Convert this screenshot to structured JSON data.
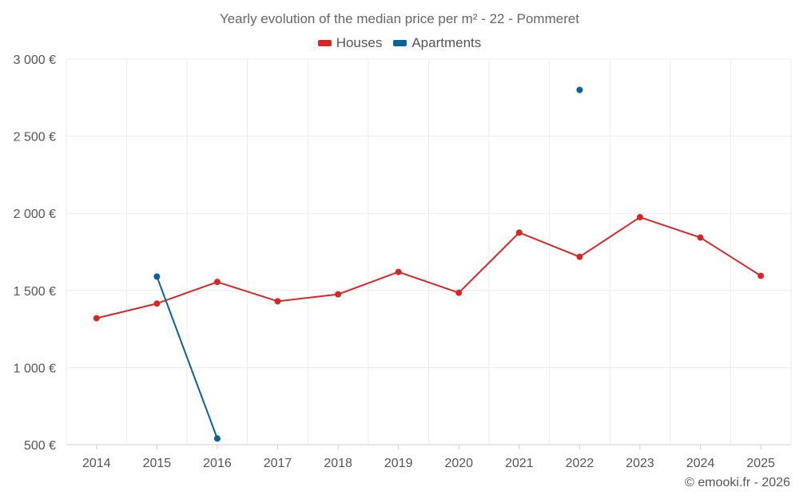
{
  "chart_data": {
    "type": "line",
    "title": "Yearly evolution of the median price per m² - 22 - Pommeret",
    "categories": [
      "2014",
      "2015",
      "2016",
      "2017",
      "2018",
      "2019",
      "2020",
      "2021",
      "2022",
      "2023",
      "2024",
      "2025"
    ],
    "ylim": [
      500,
      3000
    ],
    "yticks": [
      500,
      1000,
      1500,
      2000,
      2500,
      3000
    ],
    "ytick_labels": [
      "500 €",
      "1 000 €",
      "1 500 €",
      "2 000 €",
      "2 500 €",
      "3 000 €"
    ],
    "grid": true,
    "legend_position": "top-center",
    "series": [
      {
        "name": "Houses",
        "color": "#d62728",
        "values": [
          1320,
          1415,
          1555,
          1430,
          1475,
          1620,
          1485,
          1875,
          1718,
          1975,
          1843,
          1595
        ]
      },
      {
        "name": "Apartments",
        "color": "#0a6296",
        "values": [
          null,
          1590,
          540,
          null,
          null,
          null,
          null,
          null,
          2800,
          null,
          null,
          null
        ]
      }
    ]
  },
  "footer": {
    "credit": "© emooki.fr - 2026"
  }
}
